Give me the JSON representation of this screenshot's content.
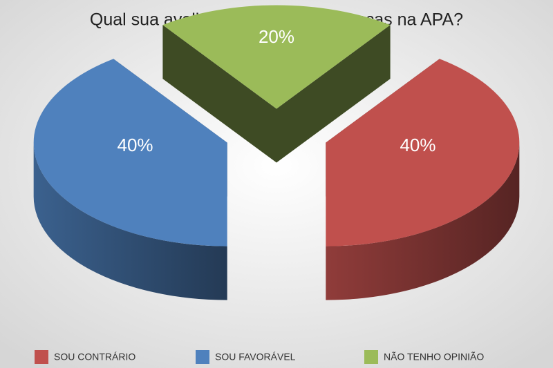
{
  "chart_data": {
    "type": "pie3d",
    "title": "Qual sua avaliação sobre as mudanças na APA?",
    "categories": [
      "SOU CONTRÁRIO",
      "SOU FAVORÁVEL",
      "NÃO TENHO OPINIÃO"
    ],
    "values": [
      40,
      40,
      20
    ],
    "value_labels": [
      "40%",
      "40%",
      "20%"
    ],
    "colors": [
      "#c0504d",
      "#4f81bd",
      "#9bbb59"
    ],
    "legend": "bottom"
  }
}
